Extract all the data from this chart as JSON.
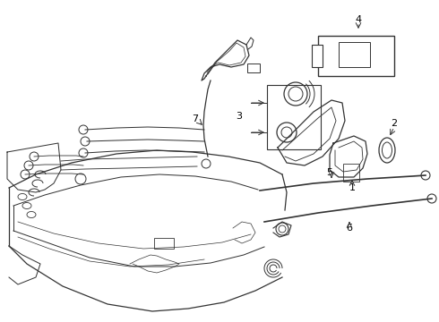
{
  "background_color": "#ffffff",
  "line_color": "#333333",
  "label_color": "#000000",
  "fig_w": 4.9,
  "fig_h": 3.6,
  "dpi": 100
}
